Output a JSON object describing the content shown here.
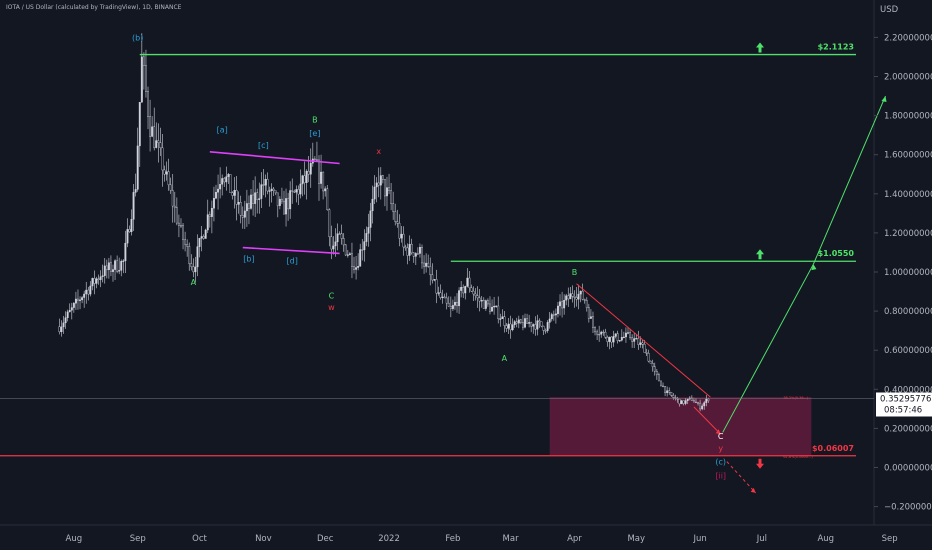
{
  "header": {
    "symbol_line": "IOTA / US Dollar (calculated by TradingView), 1D, BINANCE",
    "currency": "USD"
  },
  "chart_data": {
    "type": "candlestick",
    "symbol": "IOTA / US Dollar",
    "exchange": "BINANCE",
    "interval": "1D",
    "y_axis": {
      "ticks": [
        2.2,
        2.0,
        1.8,
        1.6,
        1.4,
        1.2,
        1.0,
        0.8,
        0.6,
        0.4,
        0.2,
        0.0,
        -0.2
      ],
      "tick_labels": [
        "2.20000000",
        "2.00000000",
        "1.80000000",
        "1.60000000",
        "1.40000000",
        "1.20000000",
        "1.00000000",
        "0.80000000",
        "0.60000000",
        "0.40000000",
        "0.20000000",
        "0.00000000",
        "−0.20000000"
      ],
      "ylim": [
        -0.25,
        2.35
      ]
    },
    "x_axis": {
      "tick_labels": [
        "Aug",
        "Sep",
        "Oct",
        "Nov",
        "Dec",
        "2022",
        "Feb",
        "Mar",
        "Apr",
        "May",
        "Jun",
        "Jul",
        "Aug",
        "Sep"
      ]
    },
    "price_path": [
      [
        "2021-07-25",
        0.72
      ],
      [
        "2021-08-05",
        0.88
      ],
      [
        "2021-08-15",
        1.0
      ],
      [
        "2021-08-25",
        1.05
      ],
      [
        "2021-08-31",
        1.45
      ],
      [
        "2021-09-03",
        2.08
      ],
      [
        "2021-09-07",
        1.75
      ],
      [
        "2021-09-13",
        1.55
      ],
      [
        "2021-09-22",
        1.2
      ],
      [
        "2021-09-28",
        1.02
      ],
      [
        "2021-10-04",
        1.25
      ],
      [
        "2021-10-12",
        1.52
      ],
      [
        "2021-10-22",
        1.28
      ],
      [
        "2021-11-01",
        1.45
      ],
      [
        "2021-11-10",
        1.32
      ],
      [
        "2021-11-20",
        1.45
      ],
      [
        "2021-11-26",
        1.55
      ],
      [
        "2021-12-01",
        1.42
      ],
      [
        "2021-12-04",
        1.12
      ],
      [
        "2021-12-08",
        1.17
      ],
      [
        "2021-12-16",
        1.03
      ],
      [
        "2021-12-22",
        1.25
      ],
      [
        "2021-12-27",
        1.48
      ],
      [
        "2022-01-01",
        1.38
      ],
      [
        "2022-01-08",
        1.12
      ],
      [
        "2022-01-16",
        1.1
      ],
      [
        "2022-01-25",
        0.88
      ],
      [
        "2022-01-31",
        0.8
      ],
      [
        "2022-02-08",
        0.95
      ],
      [
        "2022-02-13",
        0.86
      ],
      [
        "2022-02-22",
        0.8
      ],
      [
        "2022-02-28",
        0.72
      ],
      [
        "2022-03-10",
        0.74
      ],
      [
        "2022-03-18",
        0.72
      ],
      [
        "2022-03-25",
        0.82
      ],
      [
        "2022-04-01",
        0.9
      ],
      [
        "2022-04-06",
        0.86
      ],
      [
        "2022-04-10",
        0.72
      ],
      [
        "2022-04-18",
        0.66
      ],
      [
        "2022-04-28",
        0.67
      ],
      [
        "2022-05-05",
        0.61
      ],
      [
        "2022-05-10",
        0.48
      ],
      [
        "2022-05-16",
        0.38
      ],
      [
        "2022-05-23",
        0.33
      ],
      [
        "2022-05-28",
        0.35
      ],
      [
        "2022-06-01",
        0.31
      ],
      [
        "2022-06-05",
        0.353
      ]
    ],
    "current_price": "0.35295776",
    "countdown": "08:57:46",
    "levels": [
      {
        "label": "$2.1123",
        "value": 2.1123,
        "color": "#4fe26a"
      },
      {
        "label": "$1.0550",
        "value": 1.055,
        "color": "#4fe26a"
      },
      {
        "label": "$0.06007",
        "value": 0.06007,
        "color": "#f23645"
      }
    ],
    "zone": {
      "top": 0.36,
      "bottom": 0.06,
      "color": "#8b1e4a",
      "from": "2022-03-20",
      "to": "2022-07-25"
    },
    "wave_labels": [
      {
        "text": "(b)",
        "date": "2021-09-01",
        "value": 2.2,
        "color": "#2b9fd6"
      },
      {
        "text": "A",
        "date": "2021-09-28",
        "value": 0.95,
        "color": "#4fe26a"
      },
      {
        "text": "[a]",
        "date": "2021-10-12",
        "value": 1.73,
        "color": "#2b9fd6"
      },
      {
        "text": "[b]",
        "date": "2021-10-25",
        "value": 1.07,
        "color": "#2b9fd6"
      },
      {
        "text": "[c]",
        "date": "2021-11-01",
        "value": 1.65,
        "color": "#2b9fd6"
      },
      {
        "text": "[d]",
        "date": "2021-11-15",
        "value": 1.06,
        "color": "#2b9fd6"
      },
      {
        "text": "B",
        "date": "2021-11-26",
        "value": 1.78,
        "color": "#4fe26a"
      },
      {
        "text": "[e]",
        "date": "2021-11-26",
        "value": 1.71,
        "color": "#2b9fd6"
      },
      {
        "text": "C",
        "date": "2021-12-04",
        "value": 0.88,
        "color": "#4fe26a"
      },
      {
        "text": "w",
        "date": "2021-12-04",
        "value": 0.82,
        "color": "#f23645"
      },
      {
        "text": "x",
        "date": "2021-12-27",
        "value": 1.62,
        "color": "#f23645"
      },
      {
        "text": "A",
        "date": "2022-02-26",
        "value": 0.56,
        "color": "#4fe26a"
      },
      {
        "text": "B",
        "date": "2022-04-01",
        "value": 1.0,
        "color": "#4fe26a"
      },
      {
        "text": "C",
        "date": "2022-06-11",
        "value": 0.16,
        "color": "#ffffff"
      },
      {
        "text": "y",
        "date": "2022-06-11",
        "value": 0.1,
        "color": "#f23645"
      },
      {
        "text": "(c)",
        "date": "2022-06-11",
        "value": 0.03,
        "color": "#2b9fd6"
      },
      {
        "text": "[ii]",
        "date": "2022-06-11",
        "value": -0.04,
        "color": "#c2185b"
      }
    ],
    "zone_top_note": "38.2%(0.36...)",
    "zone_bottom_note": "61.8%(0.0600...)"
  }
}
